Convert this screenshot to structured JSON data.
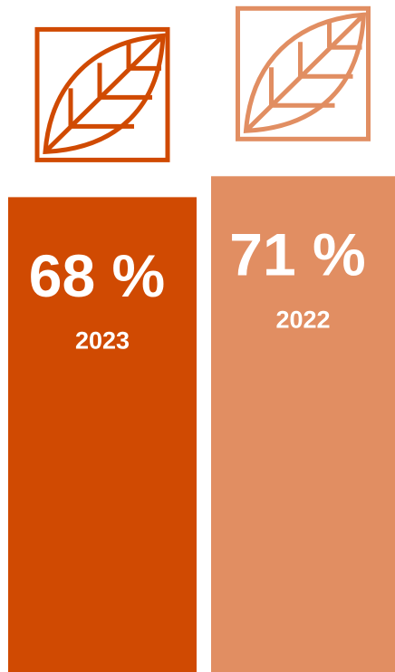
{
  "chart_data": {
    "type": "bar",
    "categories": [
      "2023",
      "2022"
    ],
    "values": [
      68,
      71
    ],
    "value_labels": [
      "68 %",
      "71 %"
    ],
    "colors": [
      "#d04a02",
      "#e18e62"
    ]
  }
}
